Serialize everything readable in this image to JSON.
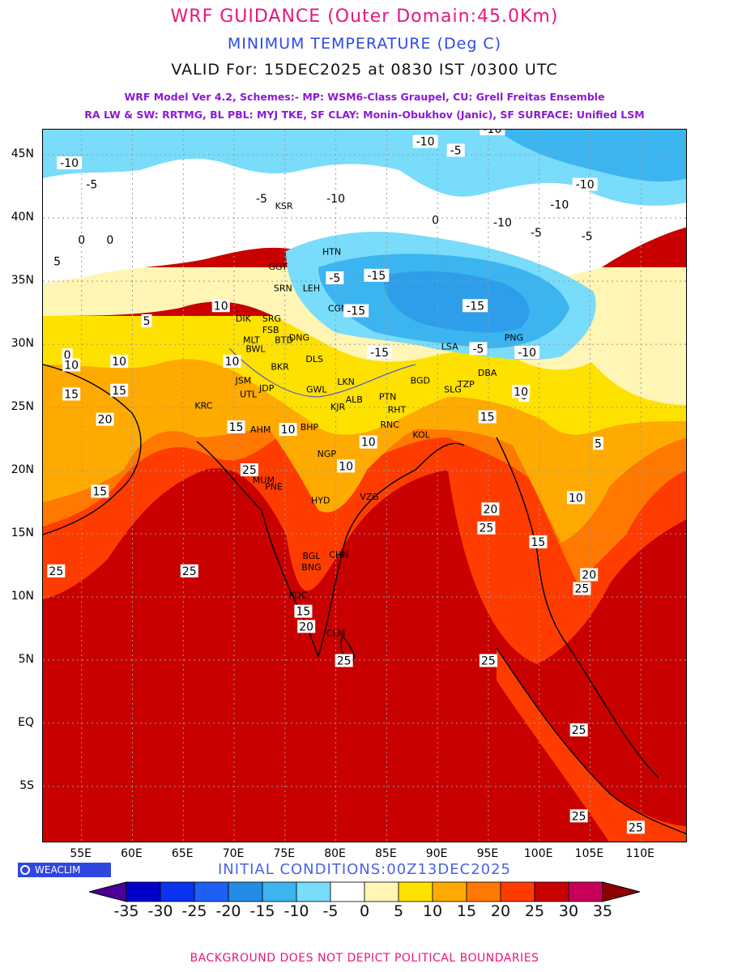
{
  "header": {
    "title": "WRF GUIDANCE (Outer Domain:45.0Km)",
    "variable": "MINIMUM TEMPERATURE (Deg C)",
    "valid": "VALID For: 15DEC2025 at 0830 IST /0300 UTC",
    "model_line1": "WRF Model Ver 4.2, Schemes:- MP: WSM6-Class Graupel, CU: Grell Freitas Ensemble",
    "model_line2": "RA LW & SW: RRTMG, BL PBL: MYJ TKE, SF CLAY: Monin-Obukhov (Janic), SF SURFACE: Unified LSM"
  },
  "axes": {
    "lat_labels": [
      "45N",
      "40N",
      "35N",
      "30N",
      "25N",
      "20N",
      "15N",
      "10N",
      "5N",
      "EQ",
      "5S"
    ],
    "lat_values": [
      45,
      40,
      35,
      30,
      25,
      20,
      15,
      10,
      5,
      0,
      -5
    ],
    "lon_labels": [
      "55E",
      "60E",
      "65E",
      "70E",
      "75E",
      "80E",
      "85E",
      "90E",
      "95E",
      "100E",
      "105E",
      "110E"
    ],
    "lon_values": [
      55,
      60,
      65,
      70,
      75,
      80,
      85,
      90,
      95,
      100,
      105,
      110
    ],
    "lon_range": [
      51.2,
      114.6
    ],
    "lat_range": [
      -9.5,
      47.0
    ]
  },
  "city_labels": [
    "KSR",
    "HTN",
    "GGT",
    "SRN",
    "LEH",
    "CGN",
    "DIK",
    "SRG",
    "FSB",
    "MLT",
    "BWL",
    "BTD",
    "DNG",
    "PNG",
    "LSA",
    "BKR",
    "DLS",
    "JSM",
    "JDP",
    "UTL",
    "LKN",
    "GWL",
    "ALB",
    "PTN",
    "KRC",
    "AHM",
    "BHP",
    "KJR",
    "RHT",
    "RNC",
    "KOL",
    "NGP",
    "MUM",
    "PNE",
    "HYD",
    "VZG",
    "BGL",
    "CHN",
    "BNG",
    "KOC",
    "CLM",
    "SLG",
    "TZP",
    "BGD",
    "DBA"
  ],
  "contour_labels": [
    "-15",
    "-10",
    "-5",
    "0",
    "5",
    "10",
    "15",
    "20",
    "25"
  ],
  "brand": "WEACLIM",
  "initial_conditions": "INITIAL CONDITIONS:00Z13DEC2025",
  "colorbar": {
    "labels": [
      "-35",
      "-30",
      "-25",
      "-20",
      "-15",
      "-10",
      "-5",
      "0",
      "5",
      "10",
      "15",
      "20",
      "25",
      "30",
      "35"
    ],
    "colors": [
      "#4b0096",
      "#0000c8",
      "#0a32f0",
      "#1e5ff5",
      "#238ce6",
      "#3cb4f0",
      "#78dcfa",
      "#ffffff",
      "#fff5b4",
      "#ffe100",
      "#ffaa00",
      "#ff7800",
      "#ff3c00",
      "#c80000",
      "#c8005a",
      "#8c0000"
    ]
  },
  "footer": "BACKGROUND DOES NOT DEPICT POLITICAL BOUNDARIES"
}
